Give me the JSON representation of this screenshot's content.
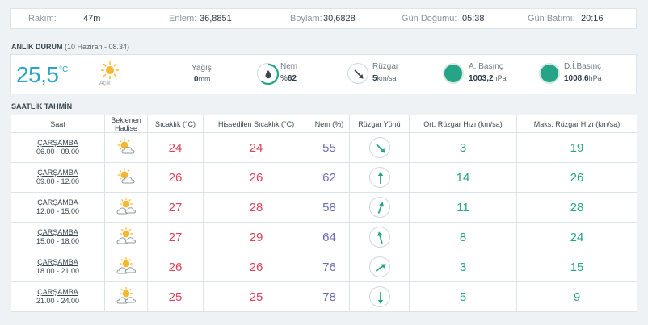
{
  "info": {
    "altitude_label": "Rakım:",
    "altitude": "47m",
    "latitude_label": "Enlem:",
    "latitude": "36,8851",
    "longitude_label": "Boylam:",
    "longitude": "30,6828",
    "sunrise_label": "Gün Doğumu:",
    "sunrise": "05:38",
    "sunset_label": "Gün Batımı:",
    "sunset": "20:16"
  },
  "current": {
    "title": "ANLIK DURUM",
    "subtitle": "(10 Haziran - 08.34)",
    "temp": "25,5",
    "temp_unit": "°C",
    "condition": "Açık",
    "condition_icon": "sun-icon",
    "rain_label": "Yağış",
    "rain_value": "0",
    "rain_unit": "mm",
    "humidity_label": "Nem",
    "humidity_prefix": "%",
    "humidity_value": "62",
    "wind_label": "Rüzgar",
    "wind_value": "5",
    "wind_unit": "km/sa",
    "pressure_label": "A. Basınç",
    "pressure_value": "1003,2",
    "pressure_unit": "hPa",
    "sea_pressure_label": "D.İ.Basınç",
    "sea_pressure_value": "1008,6",
    "sea_pressure_unit": "hPa",
    "colors": {
      "accent": "#2aa5c8",
      "pressure": "#26a586",
      "temp": "#d9445a",
      "humidity": "#6c6cb0",
      "wind": "#26a586"
    }
  },
  "forecast": {
    "title": "SAATLİK TAHMİN",
    "headers": [
      "Saat",
      "Beklenen Hadise",
      "Sıcaklık (°C)",
      "Hissedilen Sıcaklık (°C)",
      "Nem (%)",
      "Rüzgar Yönü",
      "Ort. Rüzgar Hızı (km/sa)",
      "Maks. Rüzgar Hızı (km/sa)"
    ],
    "rows": [
      {
        "day": "ÇARŞAMBA",
        "time": "06.00 - 09.00",
        "icon": "sun-cloud-icon",
        "temp": "24",
        "feels": "24",
        "humidity": "55",
        "wind_dir_deg": 135,
        "wind_avg": "3",
        "wind_max": "19"
      },
      {
        "day": "ÇARŞAMBA",
        "time": "09.00 - 12.00",
        "icon": "sun-cloud-icon",
        "temp": "26",
        "feels": "26",
        "humidity": "62",
        "wind_dir_deg": 0,
        "wind_avg": "14",
        "wind_max": "26"
      },
      {
        "day": "ÇARŞAMBA",
        "time": "12.00 - 15.00",
        "icon": "sun-clouds-icon",
        "temp": "27",
        "feels": "28",
        "humidity": "58",
        "wind_dir_deg": 20,
        "wind_avg": "11",
        "wind_max": "28"
      },
      {
        "day": "ÇARŞAMBA",
        "time": "15.00 - 18.00",
        "icon": "sun-clouds-icon",
        "temp": "27",
        "feels": "29",
        "humidity": "64",
        "wind_dir_deg": -15,
        "wind_avg": "8",
        "wind_max": "24"
      },
      {
        "day": "ÇARŞAMBA",
        "time": "18.00 - 21.00",
        "icon": "sun-clouds-icon",
        "temp": "26",
        "feels": "26",
        "humidity": "76",
        "wind_dir_deg": 55,
        "wind_avg": "3",
        "wind_max": "15"
      },
      {
        "day": "ÇARŞAMBA",
        "time": "21.00 - 24.00",
        "icon": "sun-clouds-icon",
        "temp": "25",
        "feels": "25",
        "humidity": "78",
        "wind_dir_deg": 180,
        "wind_avg": "5",
        "wind_max": "9"
      }
    ]
  }
}
